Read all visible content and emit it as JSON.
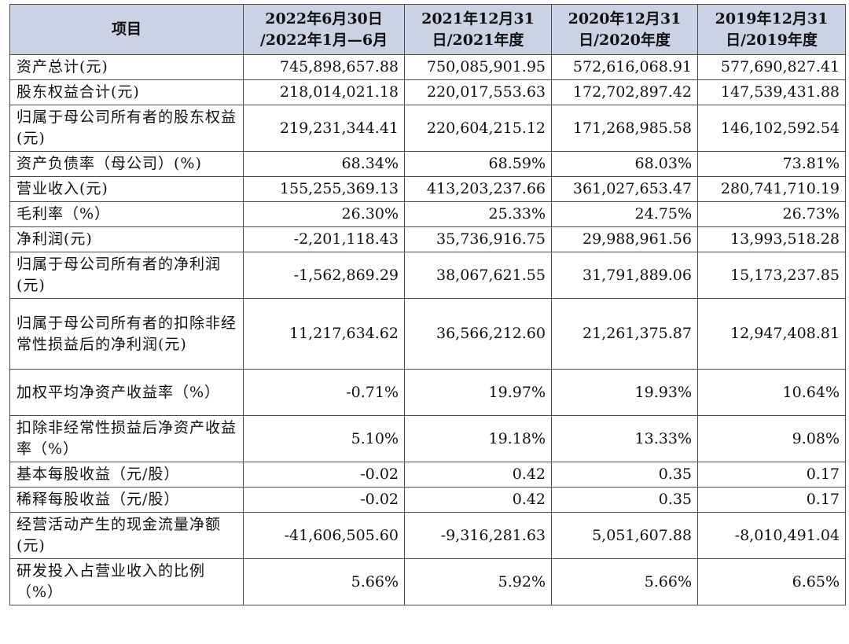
{
  "header": {
    "item": "项目",
    "columns": [
      {
        "line1": "2022年6月30日",
        "line2": "/2022年1月—6月"
      },
      {
        "line1": "2021年12月31",
        "line2": "日/2021年度"
      },
      {
        "line1": "2020年12月31",
        "line2": "日/2020年度"
      },
      {
        "line1": "2019年12月31",
        "line2": "日/2019年度"
      }
    ]
  },
  "rows": [
    {
      "label": "资产总计(元)",
      "values": [
        "745,898,657.88",
        "750,085,901.95",
        "572,616,068.91",
        "577,690,827.41"
      ]
    },
    {
      "label": "股东权益合计(元)",
      "values": [
        "218,014,021.18",
        "220,017,553.63",
        "172,702,897.42",
        "147,539,431.88"
      ]
    },
    {
      "label": "归属于母公司所有者的股东权益(元)",
      "values": [
        "219,231,344.41",
        "220,604,215.12",
        "171,268,985.58",
        "146,102,592.54"
      ]
    },
    {
      "label": "资产负债率（母公司）(%)",
      "values": [
        "68.34%",
        "68.59%",
        "68.03%",
        "73.81%"
      ]
    },
    {
      "label": "营业收入(元)",
      "values": [
        "155,255,369.13",
        "413,203,237.66",
        "361,027,653.47",
        "280,741,710.19"
      ]
    },
    {
      "label": "毛利率（%）",
      "values": [
        "26.30%",
        "25.33%",
        "24.75%",
        "26.73%"
      ]
    },
    {
      "label": "净利润(元)",
      "values": [
        "-2,201,118.43",
        "35,736,916.75",
        "29,988,961.56",
        "13,993,518.28"
      ]
    },
    {
      "label": "归属于母公司所有者的净利润(元)",
      "values": [
        "-1,562,869.29",
        "38,067,621.55",
        "31,791,889.06",
        "15,173,237.85"
      ]
    },
    {
      "label": "归属于母公司所有者的扣除非经常性损益后的净利润(元)",
      "values": [
        "11,217,634.62",
        "36,566,212.60",
        "21,261,375.87",
        "12,947,408.81"
      ]
    },
    {
      "label": "加权平均净资产收益率（%）",
      "values": [
        "-0.71%",
        "19.97%",
        "19.93%",
        "10.64%"
      ]
    },
    {
      "label": "扣除非经常性损益后净资产收益率（%）",
      "values": [
        "5.10%",
        "19.18%",
        "13.33%",
        "9.08%"
      ]
    },
    {
      "label": "基本每股收益（元/股）",
      "values": [
        "-0.02",
        "0.42",
        "0.35",
        "0.17"
      ]
    },
    {
      "label": "稀释每股收益（元/股）",
      "values": [
        "-0.02",
        "0.42",
        "0.35",
        "0.17"
      ]
    },
    {
      "label": "经营活动产生的现金流量净额(元)",
      "values": [
        "-41,606,505.60",
        "-9,316,281.63",
        "5,051,607.88",
        "-8,010,491.04"
      ]
    },
    {
      "label": "研发投入占营业收入的比例（%）",
      "values": [
        "5.66%",
        "5.92%",
        "5.66%",
        "6.65%"
      ]
    }
  ],
  "colors": {
    "header_bg": "#c9d3e3",
    "border": "#4a4a4a"
  }
}
